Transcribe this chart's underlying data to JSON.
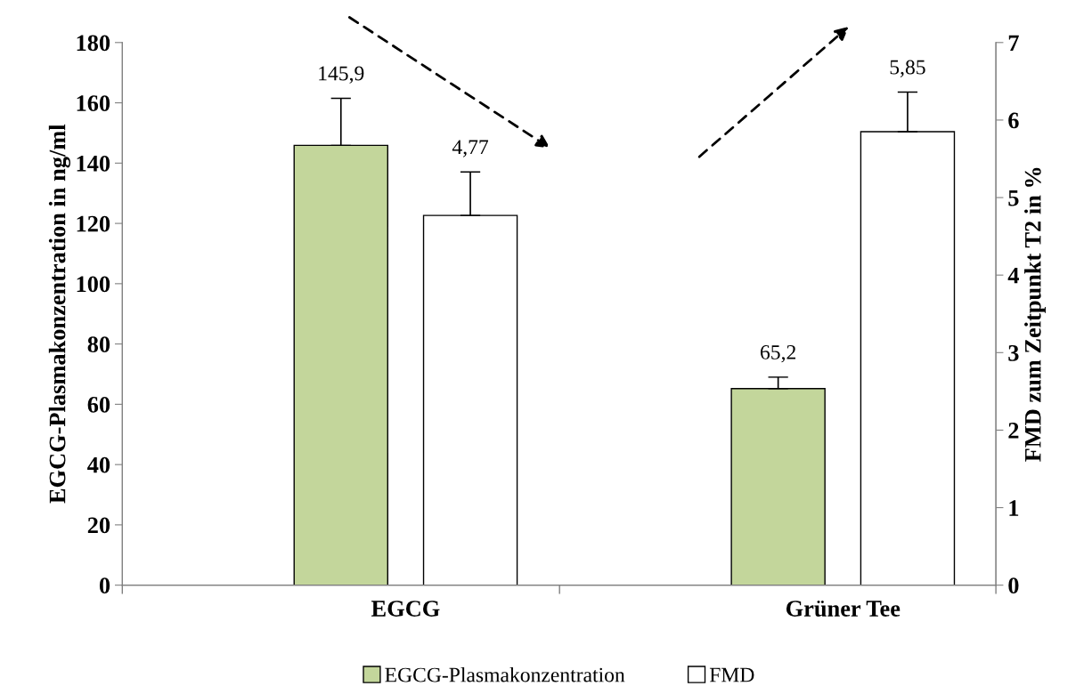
{
  "chart_data": {
    "type": "bar",
    "ylabel": "EGCG-Plasmakonzentration in ng/ml",
    "y2label": "FMD zum Zeitpunkt T2 in %",
    "categories": [
      "EGCG",
      "Grüner Tee"
    ],
    "series": [
      {
        "name": "EGCG-Plasmakonzentration",
        "color": "#c3d69b",
        "values": [
          145.9,
          65.2
        ],
        "value_labels": [
          "145,9",
          "65,2"
        ],
        "errors": [
          [
            145.9,
            161.5
          ],
          [
            65.2,
            69
          ]
        ]
      },
      {
        "name": "FMD",
        "color": "#ffffff",
        "axis": "y2",
        "values": [
          4.77,
          5.85
        ],
        "value_labels": [
          "4,77",
          "5,85"
        ],
        "errors": [
          [
            4.77,
            5.33
          ],
          [
            5.85,
            6.36
          ]
        ]
      }
    ],
    "ylim": [
      0,
      180
    ],
    "yticks": [
      0,
      20,
      40,
      60,
      80,
      100,
      120,
      140,
      160,
      180
    ],
    "y2lim": [
      0,
      7
    ],
    "y2ticks": [
      0,
      1,
      2,
      3,
      4,
      5,
      6,
      7
    ],
    "grid": false,
    "legend": "bottom"
  }
}
